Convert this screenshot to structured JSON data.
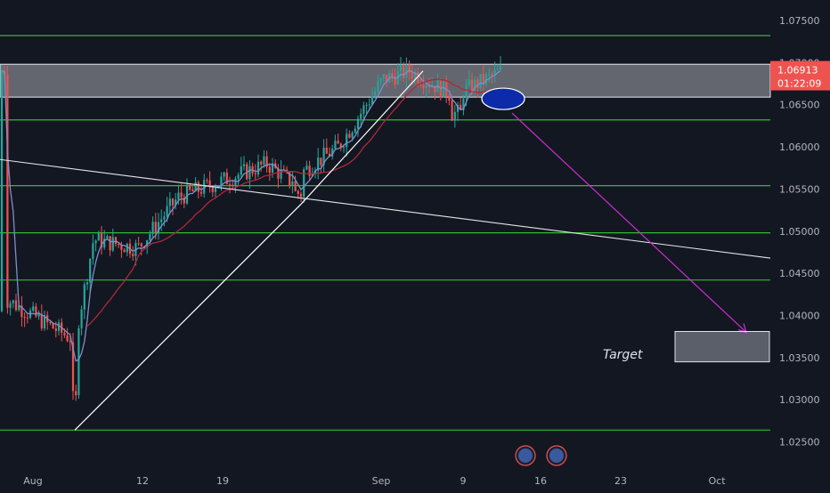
{
  "chart_data": {
    "type": "candlestick",
    "instrument_hint": "EURUSD-like price chart",
    "y_axis": {
      "range": [
        1.022,
        1.077
      ],
      "ticks": [
        "1.07500",
        "1.07000",
        "1.06500",
        "1.06000",
        "1.05500",
        "1.05000",
        "1.04500",
        "1.04000",
        "1.03500",
        "1.03000",
        "1.02500"
      ],
      "side": "right"
    },
    "x_axis": {
      "ticks": [
        "Aug",
        "12",
        "19",
        "Sep",
        "9",
        "16",
        "23",
        "Oct"
      ]
    },
    "price_badges": {
      "current_price": "1.06913",
      "countdown": "01:22:09"
    },
    "horizontal_levels": [
      1.0732,
      1.0632,
      1.0554,
      1.0498,
      1.0442,
      1.0264
    ],
    "resistance_zone": [
      1.0659,
      1.0698
    ],
    "target_zone_label": "Target",
    "target_zone": [
      1.0345,
      1.0381
    ],
    "ohlc_sample": [
      {
        "t": "Aug",
        "o": 1.0405,
        "h": 1.0455,
        "l": 1.0385,
        "c": 1.042
      },
      {
        "t": "Aug-05",
        "o": 1.038,
        "h": 1.0395,
        "l": 1.0266,
        "c": 1.037
      },
      {
        "t": "Aug-10",
        "o": 1.037,
        "h": 1.051,
        "l": 1.036,
        "c": 1.049
      },
      {
        "t": "12",
        "o": 1.049,
        "h": 1.052,
        "l": 1.0465,
        "c": 1.048
      },
      {
        "t": "Aug-16",
        "o": 1.048,
        "h": 1.056,
        "l": 1.047,
        "c": 1.054
      },
      {
        "t": "19",
        "o": 1.054,
        "h": 1.059,
        "l": 1.052,
        "c": 1.056
      },
      {
        "t": "Aug-23",
        "o": 1.056,
        "h": 1.061,
        "l": 1.053,
        "c": 1.058
      },
      {
        "t": "Aug-25",
        "o": 1.059,
        "h": 1.061,
        "l": 1.053,
        "c": 1.056
      },
      {
        "t": "Aug-28",
        "o": 1.056,
        "h": 1.062,
        "l": 1.055,
        "c": 1.06
      },
      {
        "t": "Sep",
        "o": 1.06,
        "h": 1.069,
        "l": 1.059,
        "c": 1.068
      },
      {
        "t": "Sep-03",
        "o": 1.068,
        "h": 1.071,
        "l": 1.065,
        "c": 1.069
      },
      {
        "t": "9",
        "o": 1.069,
        "h": 1.07,
        "l": 1.0632,
        "c": 1.066
      },
      {
        "t": "Sep-12",
        "o": 1.066,
        "h": 1.0705,
        "l": 1.065,
        "c": 1.0691
      }
    ],
    "indicators": [
      "fast moving average",
      "slow moving average"
    ],
    "annotations": [
      "ascending trendline",
      "descending trendline",
      "projection arrow to target",
      "ellipse highlight at retest",
      "calendar event icons"
    ],
    "grid": false
  }
}
